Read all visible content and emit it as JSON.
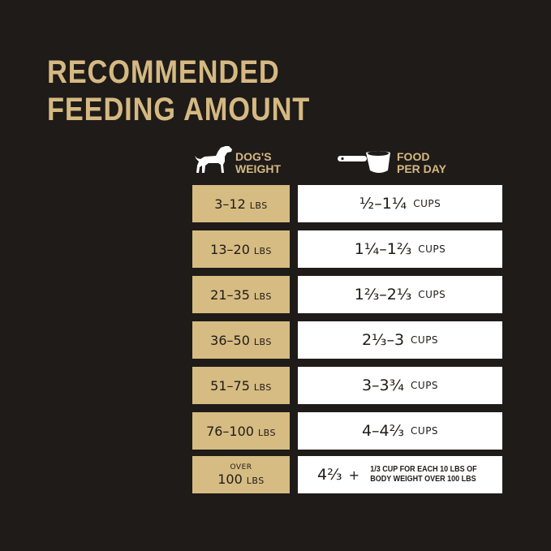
{
  "title": {
    "line1": "RECOMMENDED",
    "line2": "FEEDING AMOUNT"
  },
  "headers": {
    "weight_line1": "DOG'S",
    "weight_line2": "WEIGHT",
    "food_line1": "FOOD",
    "food_line2": "PER DAY",
    "weight_icon": "dog-icon",
    "food_icon": "measuring-cup-icon"
  },
  "colors": {
    "background": "#1f1b19",
    "gold": "#d6bb82",
    "white": "#ffffff"
  },
  "rows": [
    {
      "weight": "3–12",
      "unit": "LBS",
      "food": "½–1¼",
      "food_unit": "CUPS"
    },
    {
      "weight": "13–20",
      "unit": "LBS",
      "food": "1¼–1⅔",
      "food_unit": "CUPS"
    },
    {
      "weight": "21–35",
      "unit": "LBS",
      "food": "1⅔–2⅓",
      "food_unit": "CUPS"
    },
    {
      "weight": "36–50",
      "unit": "LBS",
      "food": "2⅓–3",
      "food_unit": "CUPS"
    },
    {
      "weight": "51–75",
      "unit": "LBS",
      "food": "3–3¾",
      "food_unit": "CUPS"
    },
    {
      "weight": "76–100",
      "unit": "LBS",
      "food": "4–4⅔",
      "food_unit": "CUPS"
    }
  ],
  "last_row": {
    "prefix": "OVER",
    "weight": "100",
    "unit": "LBS",
    "food": "4⅔",
    "plus": "+",
    "note_line1": "1/3 CUP FOR EACH 10 LBS OF",
    "note_line2": "BODY WEIGHT OVER 100 LBS"
  }
}
